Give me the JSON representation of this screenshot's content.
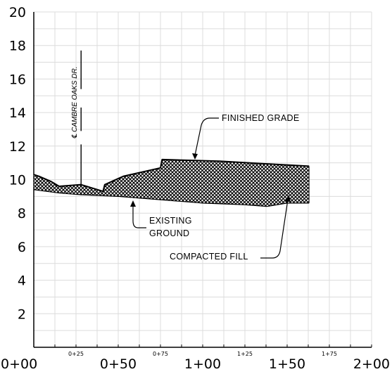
{
  "chart_data": {
    "type": "line",
    "ylim": [
      0,
      20
    ],
    "yticks": [
      "2",
      "4",
      "6",
      "8",
      "10",
      "12",
      "14",
      "16",
      "18",
      "20"
    ],
    "xlim": [
      0,
      200
    ],
    "xticks_major": [
      {
        "value": 0,
        "label": "0+00"
      },
      {
        "value": 50,
        "label": "0+50"
      },
      {
        "value": 100,
        "label": "1+00"
      },
      {
        "value": 150,
        "label": "1+50"
      },
      {
        "value": 200,
        "label": "2+00"
      }
    ],
    "xticks_minor": [
      {
        "value": 25,
        "label": "0+25"
      },
      {
        "value": 75,
        "label": "0+75"
      },
      {
        "value": 125,
        "label": "1+25"
      },
      {
        "value": 175,
        "label": "1+75"
      }
    ],
    "grid": true,
    "series": [
      {
        "name": "FINISHED GRADE",
        "points": [
          [
            0,
            10.3
          ],
          [
            3,
            10.2
          ],
          [
            10,
            9.9
          ],
          [
            15,
            9.6
          ],
          [
            28,
            9.7
          ],
          [
            41,
            9.3
          ],
          [
            42,
            9.7
          ],
          [
            53,
            10.2
          ],
          [
            75,
            10.7
          ],
          [
            76,
            11.2
          ],
          [
            110,
            11.1
          ],
          [
            163,
            10.8
          ]
        ]
      },
      {
        "name": "EXISTING GROUND",
        "points": [
          [
            0,
            9.4
          ],
          [
            15,
            9.2
          ],
          [
            28,
            9.1
          ],
          [
            50,
            9.0
          ],
          [
            75,
            8.8
          ],
          [
            100,
            8.6
          ],
          [
            125,
            8.5
          ],
          [
            138,
            8.4
          ],
          [
            150,
            8.6
          ],
          [
            163,
            8.6
          ]
        ]
      }
    ],
    "centerline": {
      "station": 28,
      "label": "℄ CAMBRE OAKS DR.",
      "y_from": 9.7,
      "y_to": 17.7
    }
  },
  "annotations": {
    "finished_grade": "FINISHED GRADE",
    "existing_ground_line1": "EXISTING",
    "existing_ground_line2": "GROUND",
    "compacted_fill": "COMPACTED FILL"
  }
}
